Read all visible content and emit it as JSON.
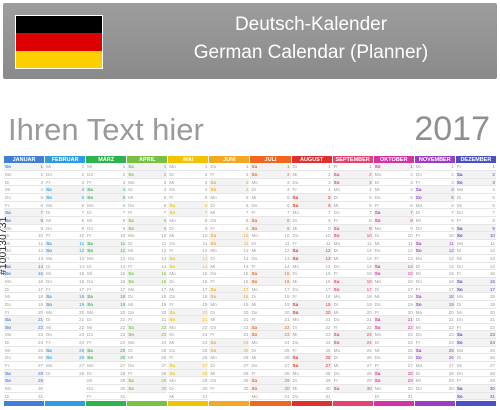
{
  "header": {
    "title_de": "Deutsch-Kalender",
    "title_en": "German Calendar (Planner)",
    "flag_colors": [
      "#000000",
      "#dd0000",
      "#ffce00"
    ]
  },
  "placeholder_text": "Ihren Text hier",
  "year": "2017",
  "watermark": "#100130731",
  "months": [
    {
      "name": "JANUAR",
      "color": "#3f7fd7",
      "days": 31,
      "start_weekday": 6
    },
    {
      "name": "FEBRUAR",
      "color": "#2f9be0",
      "days": 28,
      "start_weekday": 2
    },
    {
      "name": "MÄRZ",
      "color": "#2fb34f",
      "days": 31,
      "start_weekday": 2
    },
    {
      "name": "APRIL",
      "color": "#7ac143",
      "days": 30,
      "start_weekday": 5
    },
    {
      "name": "MAI",
      "color": "#f2c400",
      "days": 31,
      "start_weekday": 0
    },
    {
      "name": "JUNI",
      "color": "#f5a623",
      "days": 30,
      "start_weekday": 3
    },
    {
      "name": "JULI",
      "color": "#f0661d",
      "days": 31,
      "start_weekday": 5
    },
    {
      "name": "AUGUST",
      "color": "#e02f2f",
      "days": 31,
      "start_weekday": 1
    },
    {
      "name": "SEPTEMBER",
      "color": "#e8406f",
      "days": 30,
      "start_weekday": 4
    },
    {
      "name": "OKTOBER",
      "color": "#d632a6",
      "days": 31,
      "start_weekday": 6
    },
    {
      "name": "NOVEMBER",
      "color": "#9b3fc0",
      "days": 30,
      "start_weekday": 2
    },
    {
      "name": "DEZEMBER",
      "color": "#4b4fc4",
      "days": 31,
      "start_weekday": 4
    }
  ],
  "weekday_abbr": [
    "Mo",
    "Di",
    "Mi",
    "Do",
    "Fr",
    "Sa",
    "So"
  ]
}
